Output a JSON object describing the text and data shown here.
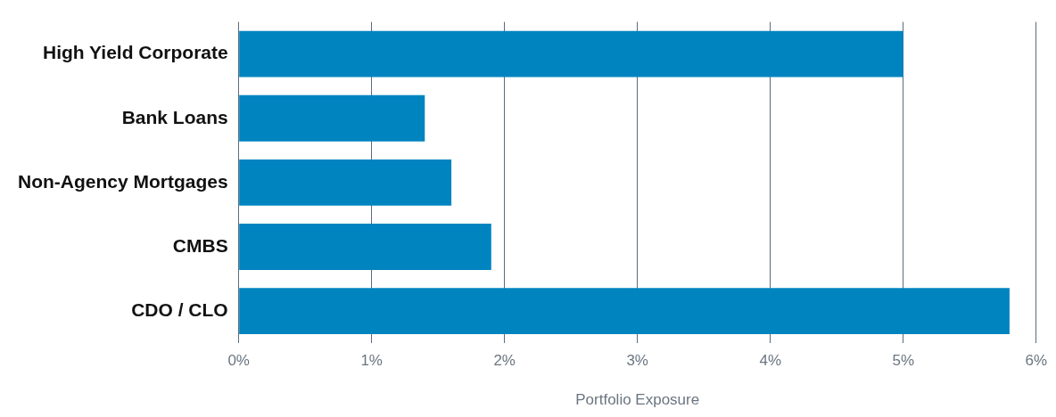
{
  "chart_data": {
    "type": "bar",
    "orientation": "horizontal",
    "xlabel": "Portfolio Exposure",
    "categories": [
      "High Yield Corporate",
      "Bank Loans",
      "Non-Agency Mortgages",
      "CMBS",
      "CDO / CLO"
    ],
    "values": [
      5.0,
      1.4,
      1.6,
      1.9,
      5.8
    ],
    "color": "#0084c0",
    "xlim": [
      0,
      6
    ],
    "xticks": [
      {
        "value": 0,
        "label": "0%"
      },
      {
        "value": 1,
        "label": "1%"
      },
      {
        "value": 2,
        "label": "2%"
      },
      {
        "value": 3,
        "label": "3%"
      },
      {
        "value": 4,
        "label": "4%"
      },
      {
        "value": 5,
        "label": "5%"
      },
      {
        "value": 6,
        "label": "6%"
      }
    ],
    "grid": "x",
    "legend": false
  }
}
